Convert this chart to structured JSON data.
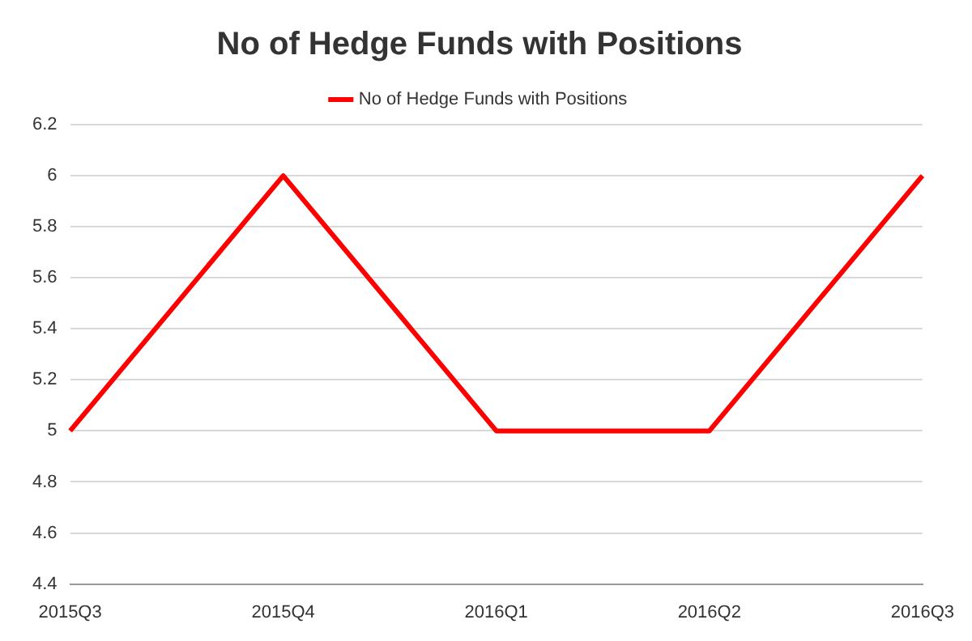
{
  "chart_data": {
    "type": "line",
    "title": "No of Hedge Funds with Positions",
    "categories": [
      "2015Q3",
      "2015Q4",
      "2016Q1",
      "2016Q2",
      "2016Q3"
    ],
    "series": [
      {
        "name": "No of Hedge Funds with Positions",
        "color": "#ff0000",
        "values": [
          5,
          6,
          5,
          5,
          6
        ]
      }
    ],
    "ylim": [
      4.4,
      6.2
    ],
    "yticks": [
      4.4,
      4.6,
      4.8,
      5,
      5.2,
      5.4,
      5.6,
      5.8,
      6,
      6.2
    ],
    "grid": "y",
    "legend": "top",
    "marker": "none"
  }
}
